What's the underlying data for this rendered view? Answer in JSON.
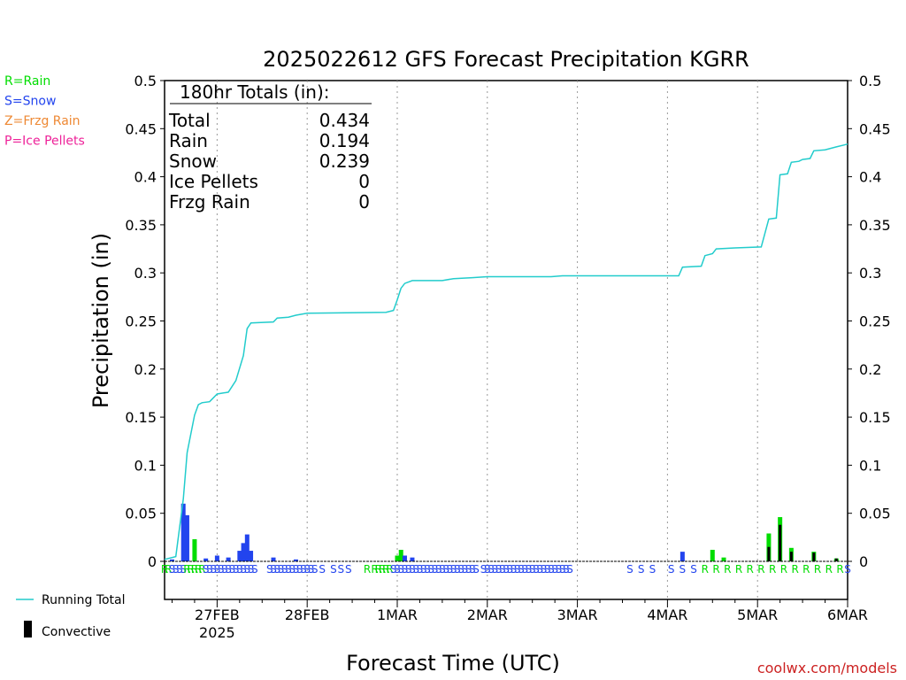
{
  "chart_data": {
    "type": "bar",
    "title": "2025022612 GFS Forecast Precipitation KGRR",
    "xlabel": "Forecast Time (UTC)",
    "ylabel": "Precipitation (in)",
    "ylim": [
      0,
      0.5
    ],
    "y_ticks": [
      "0",
      "0.05",
      "0.1",
      "0.15",
      "0.2",
      "0.25",
      "0.3",
      "0.35",
      "0.4",
      "0.45",
      "0.5"
    ],
    "x_start_hour": -2,
    "x_end_hour": 180,
    "x_ticks": [
      {
        "hour": 12,
        "label": "27FEB",
        "sublabel": "2025"
      },
      {
        "hour": 36,
        "label": "28FEB",
        "sublabel": ""
      },
      {
        "hour": 60,
        "label": "1MAR",
        "sublabel": ""
      },
      {
        "hour": 84,
        "label": "2MAR",
        "sublabel": ""
      },
      {
        "hour": 108,
        "label": "3MAR",
        "sublabel": ""
      },
      {
        "hour": 132,
        "label": "4MAR",
        "sublabel": ""
      },
      {
        "hour": 156,
        "label": "5MAR",
        "sublabel": ""
      },
      {
        "hour": 180,
        "label": "6MAR",
        "sublabel": ""
      }
    ],
    "grid": "dotted vertical lines at each day",
    "colors": {
      "rain": "#00dd00",
      "snow": "#2244ee",
      "frzg": "#ee8833",
      "ice": "#ee2299",
      "running_total": "#22cccc",
      "convective": "#000000"
    },
    "type_legend": [
      {
        "text": "R=Rain",
        "color": "#00dd00"
      },
      {
        "text": "S=Snow",
        "color": "#2244ee"
      },
      {
        "text": "Z=Frzg Rain",
        "color": "#ee8833"
      },
      {
        "text": "P=Ice Pellets",
        "color": "#ee2299"
      }
    ],
    "totals": {
      "heading": "180hr Totals (in):",
      "rows": [
        {
          "label": "Total",
          "value": "0.434"
        },
        {
          "label": "Rain",
          "value": "0.194"
        },
        {
          "label": "Snow",
          "value": "0.239"
        },
        {
          "label": "Ice Pellets",
          "value": "0"
        },
        {
          "label": "Frzg Rain",
          "value": "0"
        }
      ]
    },
    "series_legend": [
      {
        "name": "Running Total",
        "kind": "line"
      },
      {
        "name": "Convective",
        "kind": "box"
      }
    ],
    "bars": [
      {
        "hour": 0,
        "value": 0.002,
        "type": "snow"
      },
      {
        "hour": 3,
        "value": 0.06,
        "type": "snow"
      },
      {
        "hour": 4,
        "value": 0.048,
        "type": "snow"
      },
      {
        "hour": 6,
        "value": 0.023,
        "type": "rain"
      },
      {
        "hour": 9,
        "value": 0.003,
        "type": "snow"
      },
      {
        "hour": 12,
        "value": 0.006,
        "type": "snow"
      },
      {
        "hour": 15,
        "value": 0.004,
        "type": "snow"
      },
      {
        "hour": 18,
        "value": 0.011,
        "type": "snow"
      },
      {
        "hour": 19,
        "value": 0.019,
        "type": "snow"
      },
      {
        "hour": 20,
        "value": 0.028,
        "type": "snow"
      },
      {
        "hour": 21,
        "value": 0.011,
        "type": "snow"
      },
      {
        "hour": 27,
        "value": 0.004,
        "type": "snow"
      },
      {
        "hour": 33,
        "value": 0.002,
        "type": "snow"
      },
      {
        "hour": 60,
        "value": 0.006,
        "type": "rain"
      },
      {
        "hour": 61,
        "value": 0.012,
        "type": "rain"
      },
      {
        "hour": 62,
        "value": 0.006,
        "type": "snow"
      },
      {
        "hour": 64,
        "value": 0.004,
        "type": "snow"
      },
      {
        "hour": 136,
        "value": 0.01,
        "type": "snow"
      },
      {
        "hour": 144,
        "value": 0.012,
        "type": "rain"
      },
      {
        "hour": 147,
        "value": 0.004,
        "type": "rain"
      },
      {
        "hour": 159,
        "value": 0.029,
        "type": "rain",
        "convective": 0.015
      },
      {
        "hour": 162,
        "value": 0.046,
        "type": "rain",
        "convective": 0.038
      },
      {
        "hour": 165,
        "value": 0.014,
        "type": "rain",
        "convective": 0.01
      },
      {
        "hour": 171,
        "value": 0.01,
        "type": "rain",
        "convective": 0.009
      },
      {
        "hour": 177,
        "value": 0.003,
        "type": "rain",
        "convective": 0.003
      }
    ],
    "running_total": [
      {
        "hour": -2,
        "value": 0.002
      },
      {
        "hour": 1,
        "value": 0.005
      },
      {
        "hour": 3,
        "value": 0.065
      },
      {
        "hour": 4,
        "value": 0.113
      },
      {
        "hour": 6,
        "value": 0.152
      },
      {
        "hour": 7,
        "value": 0.163
      },
      {
        "hour": 8,
        "value": 0.165
      },
      {
        "hour": 10,
        "value": 0.166
      },
      {
        "hour": 12,
        "value": 0.174
      },
      {
        "hour": 15,
        "value": 0.176
      },
      {
        "hour": 17,
        "value": 0.188
      },
      {
        "hour": 19,
        "value": 0.214
      },
      {
        "hour": 20,
        "value": 0.242
      },
      {
        "hour": 21,
        "value": 0.248
      },
      {
        "hour": 27,
        "value": 0.249
      },
      {
        "hour": 28,
        "value": 0.253
      },
      {
        "hour": 31,
        "value": 0.254
      },
      {
        "hour": 33,
        "value": 0.256
      },
      {
        "hour": 36,
        "value": 0.258
      },
      {
        "hour": 57,
        "value": 0.259
      },
      {
        "hour": 59,
        "value": 0.261
      },
      {
        "hour": 60,
        "value": 0.272
      },
      {
        "hour": 61,
        "value": 0.284
      },
      {
        "hour": 62,
        "value": 0.289
      },
      {
        "hour": 64,
        "value": 0.292
      },
      {
        "hour": 72,
        "value": 0.292
      },
      {
        "hour": 75,
        "value": 0.294
      },
      {
        "hour": 80,
        "value": 0.295
      },
      {
        "hour": 84,
        "value": 0.296
      },
      {
        "hour": 101,
        "value": 0.296
      },
      {
        "hour": 104,
        "value": 0.297
      },
      {
        "hour": 135,
        "value": 0.297
      },
      {
        "hour": 136,
        "value": 0.306
      },
      {
        "hour": 141,
        "value": 0.307
      },
      {
        "hour": 142,
        "value": 0.318
      },
      {
        "hour": 144,
        "value": 0.32
      },
      {
        "hour": 145,
        "value": 0.325
      },
      {
        "hour": 150,
        "value": 0.326
      },
      {
        "hour": 157,
        "value": 0.327
      },
      {
        "hour": 159,
        "value": 0.356
      },
      {
        "hour": 161,
        "value": 0.357
      },
      {
        "hour": 162,
        "value": 0.402
      },
      {
        "hour": 164,
        "value": 0.403
      },
      {
        "hour": 165,
        "value": 0.415
      },
      {
        "hour": 167,
        "value": 0.416
      },
      {
        "hour": 168,
        "value": 0.418
      },
      {
        "hour": 170,
        "value": 0.419
      },
      {
        "hour": 171,
        "value": 0.427
      },
      {
        "hour": 174,
        "value": 0.428
      },
      {
        "hour": 177,
        "value": 0.431
      },
      {
        "hour": 179,
        "value": 0.433
      },
      {
        "hour": 180,
        "value": 0.434
      }
    ],
    "type_codes": [
      {
        "hour": -2,
        "code": "R",
        "type": "rain"
      },
      {
        "hour": -1,
        "code": "R",
        "type": "rain"
      },
      {
        "hour": 0,
        "code": "S",
        "type": "snow"
      },
      {
        "hour": 1,
        "code": "S",
        "type": "snow"
      },
      {
        "hour": 2,
        "code": "S",
        "type": "snow"
      },
      {
        "hour": 3,
        "code": "S",
        "type": "snow"
      },
      {
        "hour": 4,
        "code": "R",
        "type": "rain"
      },
      {
        "hour": 5,
        "code": "R",
        "type": "rain"
      },
      {
        "hour": 6,
        "code": "R",
        "type": "rain"
      },
      {
        "hour": 7,
        "code": "R",
        "type": "rain"
      },
      {
        "hour": 8,
        "code": "R",
        "type": "rain"
      },
      {
        "hour": 9,
        "code": "S",
        "type": "snow"
      },
      {
        "hour": 10,
        "code": "S",
        "type": "snow"
      },
      {
        "hour": 11,
        "code": "S",
        "type": "snow"
      },
      {
        "hour": 12,
        "code": "S",
        "type": "snow"
      },
      {
        "hour": 13,
        "code": "S",
        "type": "snow"
      },
      {
        "hour": 14,
        "code": "S",
        "type": "snow"
      },
      {
        "hour": 15,
        "code": "S",
        "type": "snow"
      },
      {
        "hour": 16,
        "code": "S",
        "type": "snow"
      },
      {
        "hour": 17,
        "code": "S",
        "type": "snow"
      },
      {
        "hour": 18,
        "code": "S",
        "type": "snow"
      },
      {
        "hour": 19,
        "code": "S",
        "type": "snow"
      },
      {
        "hour": 20,
        "code": "S",
        "type": "snow"
      },
      {
        "hour": 21,
        "code": "S",
        "type": "snow"
      },
      {
        "hour": 22,
        "code": "S",
        "type": "snow"
      },
      {
        "hour": 26,
        "code": "S",
        "type": "snow"
      },
      {
        "hour": 27,
        "code": "S",
        "type": "snow"
      },
      {
        "hour": 28,
        "code": "S",
        "type": "snow"
      },
      {
        "hour": 29,
        "code": "S",
        "type": "snow"
      },
      {
        "hour": 30,
        "code": "S",
        "type": "snow"
      },
      {
        "hour": 31,
        "code": "S",
        "type": "snow"
      },
      {
        "hour": 32,
        "code": "S",
        "type": "snow"
      },
      {
        "hour": 33,
        "code": "S",
        "type": "snow"
      },
      {
        "hour": 34,
        "code": "S",
        "type": "snow"
      },
      {
        "hour": 35,
        "code": "S",
        "type": "snow"
      },
      {
        "hour": 36,
        "code": "S",
        "type": "snow"
      },
      {
        "hour": 37,
        "code": "S",
        "type": "snow"
      },
      {
        "hour": 38,
        "code": "S",
        "type": "snow"
      },
      {
        "hour": 40,
        "code": "S",
        "type": "snow"
      },
      {
        "hour": 43,
        "code": "S",
        "type": "snow"
      },
      {
        "hour": 45,
        "code": "S",
        "type": "snow"
      },
      {
        "hour": 47,
        "code": "S",
        "type": "snow"
      },
      {
        "hour": 52,
        "code": "R",
        "type": "rain"
      },
      {
        "hour": 54,
        "code": "R",
        "type": "rain"
      },
      {
        "hour": 55,
        "code": "R",
        "type": "rain"
      },
      {
        "hour": 56,
        "code": "R",
        "type": "rain"
      },
      {
        "hour": 57,
        "code": "R",
        "type": "rain"
      },
      {
        "hour": 58,
        "code": "R",
        "type": "rain"
      },
      {
        "hour": 59,
        "code": "S",
        "type": "snow"
      },
      {
        "hour": 60,
        "code": "S",
        "type": "snow"
      },
      {
        "hour": 61,
        "code": "S",
        "type": "snow"
      },
      {
        "hour": 62,
        "code": "S",
        "type": "snow"
      },
      {
        "hour": 63,
        "code": "S",
        "type": "snow"
      },
      {
        "hour": 64,
        "code": "S",
        "type": "snow"
      },
      {
        "hour": 65,
        "code": "S",
        "type": "snow"
      },
      {
        "hour": 66,
        "code": "S",
        "type": "snow"
      },
      {
        "hour": 67,
        "code": "S",
        "type": "snow"
      },
      {
        "hour": 68,
        "code": "S",
        "type": "snow"
      },
      {
        "hour": 69,
        "code": "S",
        "type": "snow"
      },
      {
        "hour": 70,
        "code": "S",
        "type": "snow"
      },
      {
        "hour": 71,
        "code": "S",
        "type": "snow"
      },
      {
        "hour": 72,
        "code": "S",
        "type": "snow"
      },
      {
        "hour": 73,
        "code": "S",
        "type": "snow"
      },
      {
        "hour": 74,
        "code": "S",
        "type": "snow"
      },
      {
        "hour": 75,
        "code": "S",
        "type": "snow"
      },
      {
        "hour": 76,
        "code": "S",
        "type": "snow"
      },
      {
        "hour": 77,
        "code": "S",
        "type": "snow"
      },
      {
        "hour": 78,
        "code": "S",
        "type": "snow"
      },
      {
        "hour": 79,
        "code": "S",
        "type": "snow"
      },
      {
        "hour": 80,
        "code": "S",
        "type": "snow"
      },
      {
        "hour": 81,
        "code": "S",
        "type": "snow"
      },
      {
        "hour": 83,
        "code": "S",
        "type": "snow"
      },
      {
        "hour": 84,
        "code": "S",
        "type": "snow"
      },
      {
        "hour": 85,
        "code": "S",
        "type": "snow"
      },
      {
        "hour": 86,
        "code": "S",
        "type": "snow"
      },
      {
        "hour": 87,
        "code": "S",
        "type": "snow"
      },
      {
        "hour": 88,
        "code": "S",
        "type": "snow"
      },
      {
        "hour": 89,
        "code": "S",
        "type": "snow"
      },
      {
        "hour": 90,
        "code": "S",
        "type": "snow"
      },
      {
        "hour": 91,
        "code": "S",
        "type": "snow"
      },
      {
        "hour": 92,
        "code": "S",
        "type": "snow"
      },
      {
        "hour": 93,
        "code": "S",
        "type": "snow"
      },
      {
        "hour": 94,
        "code": "S",
        "type": "snow"
      },
      {
        "hour": 95,
        "code": "S",
        "type": "snow"
      },
      {
        "hour": 96,
        "code": "S",
        "type": "snow"
      },
      {
        "hour": 97,
        "code": "S",
        "type": "snow"
      },
      {
        "hour": 98,
        "code": "S",
        "type": "snow"
      },
      {
        "hour": 99,
        "code": "S",
        "type": "snow"
      },
      {
        "hour": 100,
        "code": "S",
        "type": "snow"
      },
      {
        "hour": 101,
        "code": "S",
        "type": "snow"
      },
      {
        "hour": 102,
        "code": "S",
        "type": "snow"
      },
      {
        "hour": 103,
        "code": "S",
        "type": "snow"
      },
      {
        "hour": 104,
        "code": "S",
        "type": "snow"
      },
      {
        "hour": 105,
        "code": "S",
        "type": "snow"
      },
      {
        "hour": 106,
        "code": "S",
        "type": "snow"
      },
      {
        "hour": 122,
        "code": "S",
        "type": "snow"
      },
      {
        "hour": 125,
        "code": "S",
        "type": "snow"
      },
      {
        "hour": 128,
        "code": "S",
        "type": "snow"
      },
      {
        "hour": 133,
        "code": "S",
        "type": "snow"
      },
      {
        "hour": 136,
        "code": "S",
        "type": "snow"
      },
      {
        "hour": 139,
        "code": "S",
        "type": "snow"
      },
      {
        "hour": 142,
        "code": "R",
        "type": "rain"
      },
      {
        "hour": 145,
        "code": "R",
        "type": "rain"
      },
      {
        "hour": 148,
        "code": "R",
        "type": "rain"
      },
      {
        "hour": 151,
        "code": "R",
        "type": "rain"
      },
      {
        "hour": 154,
        "code": "R",
        "type": "rain"
      },
      {
        "hour": 157,
        "code": "R",
        "type": "rain"
      },
      {
        "hour": 160,
        "code": "R",
        "type": "rain"
      },
      {
        "hour": 163,
        "code": "R",
        "type": "rain"
      },
      {
        "hour": 166,
        "code": "R",
        "type": "rain"
      },
      {
        "hour": 169,
        "code": "R",
        "type": "rain"
      },
      {
        "hour": 172,
        "code": "R",
        "type": "rain"
      },
      {
        "hour": 175,
        "code": "R",
        "type": "rain"
      },
      {
        "hour": 178,
        "code": "R",
        "type": "rain"
      },
      {
        "hour": 180,
        "code": "S",
        "type": "snow"
      }
    ],
    "credit": "coolwx.com/models"
  }
}
